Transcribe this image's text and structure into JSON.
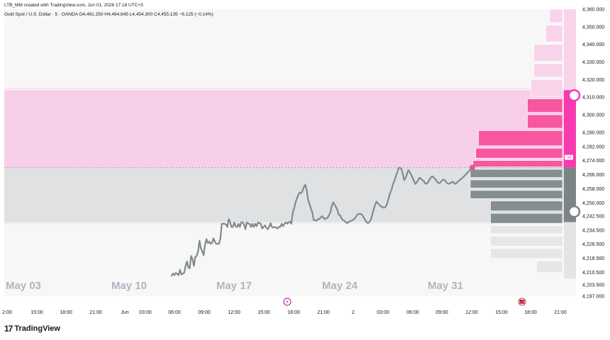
{
  "credit": "LTB_MM created with TradingView.com, Jun 01, 2026 17:18 UTC+3",
  "symbol_line": "Gold Spot / U.S. Dollar · 5 · OANDA  O4,461.250  H4,464.845  L4,454.300  C4,455.135  −6.125 (−0.14%)",
  "brand": {
    "logo": "17",
    "name": "TradingView"
  },
  "price_marker": "34",
  "chart_data": {
    "type": "line",
    "ylim": [
      4197,
      4360
    ],
    "y_ticks": [
      "4,360.000",
      "4,350.000",
      "4,340.000",
      "4,330.000",
      "4,320.000",
      "4,310.000",
      "4,300.000",
      "4,290.000",
      "4,282.000",
      "4,274.000",
      "4,266.000",
      "4,258.000",
      "4,250.000",
      "4,242.500",
      "4,234.500",
      "4,226.500",
      "4,218.500",
      "4,210.500",
      "4,203.500",
      "4,197.000"
    ],
    "x_ticks": [
      "2:00",
      "15:00",
      "18:00",
      "21:00",
      "Jun",
      "03:00",
      "06:00",
      "09:00",
      "12:00",
      "15:00",
      "18:00",
      "21:00",
      "2",
      "03:00",
      "06:00",
      "09:00",
      "12:00",
      "15:00",
      "18:00",
      "21:00"
    ],
    "watermark_dates": [
      "May 03",
      "May 10",
      "May 17",
      "May 24",
      "May 31"
    ],
    "zones": [
      {
        "name": "upper",
        "from": 4270,
        "to": 4314,
        "color": "#f7cfe8"
      },
      {
        "name": "lower",
        "from": 4239,
        "to": 4270,
        "color": "#dfe1e2"
      }
    ],
    "current_price": 4270,
    "circle_markers": [
      4311,
      4245
    ],
    "series": [
      {
        "color": "#808a8c",
        "x": [
          0,
          2,
          4,
          6,
          8,
          10,
          12,
          14,
          16,
          18,
          20,
          22,
          24,
          26,
          28,
          30,
          32,
          34,
          36,
          38,
          40,
          42,
          44,
          46,
          48,
          50,
          52,
          54,
          56,
          58,
          60,
          62,
          64,
          66,
          68,
          70,
          72,
          74,
          76,
          78,
          80,
          82,
          84,
          86,
          88,
          90,
          92,
          94,
          96,
          98,
          100,
          102,
          104,
          106,
          108,
          110,
          112,
          114,
          116,
          118,
          120,
          122,
          124,
          126,
          128,
          130,
          132,
          134,
          136,
          138,
          140,
          142,
          144,
          146,
          148,
          150,
          152,
          154,
          156,
          158,
          160,
          162,
          164,
          166,
          168,
          170,
          172,
          174,
          176,
          178,
          180,
          182,
          184,
          186,
          188,
          190,
          192,
          194,
          196,
          198,
          200,
          202,
          204,
          206,
          208,
          210,
          212,
          214,
          216,
          218,
          220,
          222,
          224,
          226,
          228,
          230,
          232,
          234,
          236,
          238,
          240,
          242,
          244,
          246,
          248,
          250,
          252,
          254,
          256,
          258,
          260,
          262,
          264,
          266,
          268,
          270,
          272,
          274,
          276,
          278,
          280,
          282,
          284,
          286,
          288,
          290,
          292,
          294,
          296,
          298,
          300,
          302,
          304,
          306,
          308,
          310,
          312,
          314,
          316,
          318,
          320,
          322,
          324,
          326,
          328,
          330,
          332,
          334,
          336,
          338,
          340,
          342,
          344,
          346,
          348,
          350,
          352,
          354,
          356,
          358,
          360,
          362,
          364,
          366,
          368,
          370,
          372,
          374,
          376,
          378,
          380,
          382,
          384,
          386,
          388,
          390,
          392,
          394,
          396,
          398,
          400,
          402,
          404,
          406,
          408,
          410,
          412,
          414,
          416,
          418,
          420,
          422,
          424,
          426,
          428,
          430,
          432
        ],
        "y": [
          4208.5,
          4209.8,
          4208.9,
          4210.2,
          4209.5,
          4208.9,
          4211.9,
          4209.3,
          4209.8,
          4210.2,
          4214.1,
          4216.7,
          4213.2,
          4212.8,
          4219.8,
          4218.0,
          4214.1,
          4219.3,
          4219.8,
          4222.4,
          4228.5,
          4224.1,
          4222.4,
          4220.2,
          4226.3,
          4229.4,
          4227.1,
          4228.0,
          4226.7,
          4227.1,
          4229.8,
          4228.0,
          4226.7,
          4226.7,
          4226.7,
          4229.8,
          4238.1,
          4238.1,
          4238.1,
          4237.6,
          4236.3,
          4240.7,
          4239.0,
          4236.3,
          4236.3,
          4238.9,
          4236.7,
          4236.3,
          4238.1,
          4236.3,
          4238.9,
          4238.9,
          4237.6,
          4235.0,
          4238.9,
          4238.1,
          4238.1,
          4236.3,
          4238.1,
          4236.3,
          4238.1,
          4236.7,
          4238.9,
          4238.5,
          4238.1,
          4235.4,
          4236.3,
          4237.2,
          4235.9,
          4235.0,
          4236.3,
          4238.5,
          4236.3,
          4235.9,
          4236.3,
          4235.9,
          4235.4,
          4236.3,
          4236.3,
          4238.1,
          4236.7,
          4238.1,
          4238.9,
          4238.1,
          4238.9,
          4239.4,
          4238.1,
          4244.6,
          4246.8,
          4250.3,
          4252.5,
          4254.6,
          4255.9,
          4255.5,
          4256.8,
          4258.9,
          4260.3,
          4257.2,
          4251.6,
          4249.4,
          4246.8,
          4244.6,
          4240.2,
          4240.2,
          4239.8,
          4240.7,
          4240.7,
          4241.6,
          4242.4,
          4241.5,
          4240.7,
          4241.1,
          4241.5,
          4242.9,
          4244.6,
          4248.1,
          4250.3,
          4249.0,
          4247.7,
          4245.9,
          4243.3,
          4242.9,
          4241.1,
          4240.2,
          4239.8,
          4239.0,
          4238.5,
          4239.0,
          4239.4,
          4239.8,
          4240.2,
          4240.7,
          4241.6,
          4242.9,
          4243.7,
          4243.7,
          4243.7,
          4242.9,
          4241.6,
          4240.2,
          4239.0,
          4238.5,
          4239.0,
          4240.2,
          4242.9,
          4245.9,
          4248.6,
          4250.7,
          4249.8,
          4249.0,
          4248.1,
          4247.7,
          4247.3,
          4247.3,
          4248.1,
          4250.3,
          4252.9,
          4255.9,
          4257.6,
          4260.7,
          4262.4,
          4265.1,
          4267.2,
          4269.7,
          4270.0,
          4269.3,
          4266.3,
          4262.9,
          4264.2,
          4266.3,
          4268.5,
          4267.6,
          4265.9,
          4264.2,
          4262.4,
          4260.7,
          4261.6,
          4262.9,
          4264.2,
          4263.7,
          4262.9,
          4262.4,
          4261.1,
          4260.7,
          4261.6,
          4262.9,
          4264.2,
          4265.0,
          4264.6,
          4263.7,
          4262.9,
          4261.6,
          4261.1,
          4261.6,
          4262.4,
          4263.3,
          4262.9,
          4262.0,
          4261.1,
          4260.7,
          4261.1,
          4261.6,
          4262.0,
          4261.1,
          4260.7,
          4261.6,
          4262.4,
          4262.9,
          4263.7,
          4264.2,
          4265.0,
          4265.9,
          4266.7,
          4267.6,
          4268.5,
          4269.3,
          4270.0
        ]
      }
    ],
    "volume_profile": [
      {
        "low": 4352,
        "high": 4360,
        "w": 0.14,
        "color": "#f8d4ea"
      },
      {
        "low": 4341,
        "high": 4351,
        "w": 0.18,
        "color": "#f8d4ea"
      },
      {
        "low": 4330,
        "high": 4340,
        "w": 0.31,
        "color": "#f8d4ea"
      },
      {
        "low": 4321,
        "high": 4329,
        "w": 0.31,
        "color": "#f8d4ea"
      },
      {
        "low": 4310,
        "high": 4320,
        "w": 0.34,
        "color": "#f8d4ea"
      },
      {
        "low": 4301,
        "high": 4309,
        "w": 0.38,
        "color": "#f7579f"
      },
      {
        "low": 4292,
        "high": 4300,
        "w": 0.38,
        "color": "#f7579f"
      },
      {
        "low": 4282,
        "high": 4291,
        "w": 0.91,
        "color": "#f7579f"
      },
      {
        "low": 4275,
        "high": 4281,
        "w": 0.94,
        "color": "#f7579f"
      },
      {
        "low": 4270,
        "high": 4274,
        "w": 0.97,
        "color": "#f7579f"
      },
      {
        "low": 4264,
        "high": 4269,
        "w": 1.0,
        "color": "#868f90"
      },
      {
        "low": 4258,
        "high": 4263,
        "w": 1.0,
        "color": "#868f90"
      },
      {
        "low": 4252,
        "high": 4257,
        "w": 1.0,
        "color": "#868f90"
      },
      {
        "low": 4245,
        "high": 4251,
        "w": 0.78,
        "color": "#868f90"
      },
      {
        "low": 4238,
        "high": 4244,
        "w": 0.78,
        "color": "#868f90"
      },
      {
        "low": 4232,
        "high": 4237,
        "w": 0.78,
        "color": "#e5e6e7"
      },
      {
        "low": 4225,
        "high": 4231,
        "w": 0.78,
        "color": "#e5e6e7"
      },
      {
        "low": 4218,
        "high": 4224,
        "w": 0.78,
        "color": "#e5e6e7"
      },
      {
        "low": 4210,
        "high": 4217,
        "w": 0.28,
        "color": "#e5e6e7"
      }
    ]
  }
}
